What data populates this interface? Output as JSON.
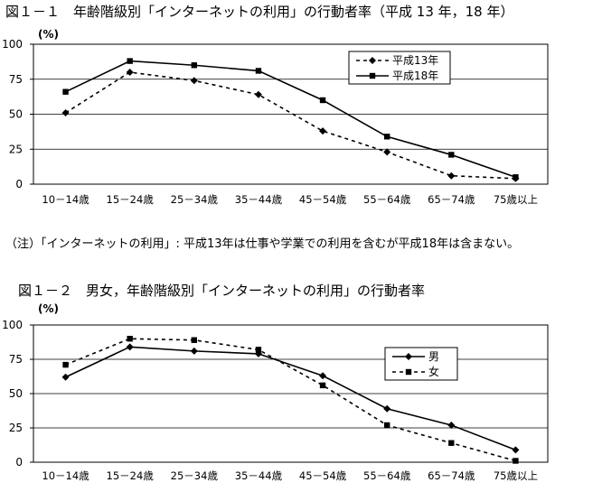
{
  "figure1_title": "図１－１　年齢階級別「インターネットの利用」の行動者率（平成 13 年，18 年）",
  "figure2_title": "図１－２　男女，年齢階級別「インターネットの利用」の行動者率",
  "note": "（注）「インターネットの利用」: 平成13年は仕事や学業での利用を含むが平成18年は含まない。",
  "chart_data": [
    {
      "type": "line",
      "ylabel": "(%)",
      "ylim": [
        0,
        100
      ],
      "yticks": [
        0,
        25,
        50,
        75,
        100
      ],
      "grid": true,
      "legend": "top-right",
      "categories": [
        "10－14歳",
        "15－24歳",
        "25－34歳",
        "35－44歳",
        "45－54歳",
        "55－64歳",
        "65－74歳",
        "75歳以上"
      ],
      "series": [
        {
          "name": "平成13年",
          "values": [
            51,
            80,
            74,
            64,
            38,
            23,
            6,
            4
          ],
          "style": "dotted",
          "marker": "diamond",
          "color": "#000000"
        },
        {
          "name": "平成18年",
          "values": [
            66,
            88,
            85,
            81,
            60,
            34,
            21,
            5
          ],
          "style": "solid",
          "marker": "square",
          "color": "#000000"
        }
      ]
    },
    {
      "type": "line",
      "ylabel": "(%)",
      "ylim": [
        0,
        100
      ],
      "yticks": [
        0,
        25,
        50,
        75,
        100
      ],
      "grid": true,
      "legend": "top-right",
      "categories": [
        "10－14歳",
        "15－24歳",
        "25－34歳",
        "35－44歳",
        "45－54歳",
        "55－64歳",
        "65－74歳",
        "75歳以上"
      ],
      "series": [
        {
          "name": "男",
          "values": [
            62,
            84,
            81,
            79,
            63,
            39,
            27,
            9
          ],
          "style": "solid",
          "marker": "diamond",
          "color": "#000000"
        },
        {
          "name": "女",
          "values": [
            71,
            90,
            89,
            82,
            56,
            27,
            14,
            1
          ],
          "style": "dotted",
          "marker": "square",
          "color": "#000000"
        }
      ]
    }
  ]
}
